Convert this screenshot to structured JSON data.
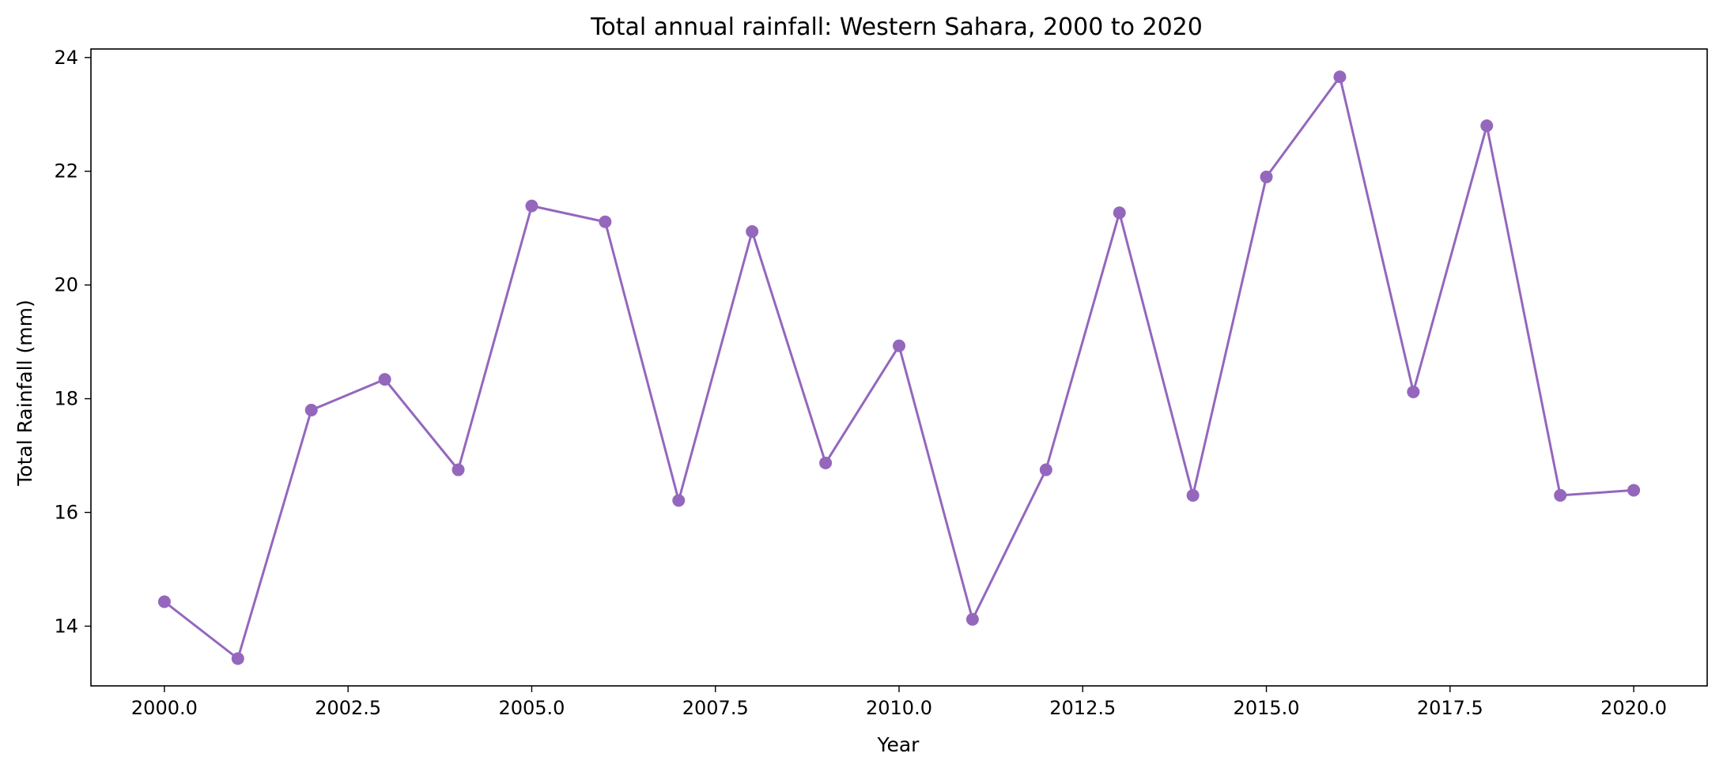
{
  "chart_data": {
    "type": "line",
    "title": "Total annual rainfall: Western Sahara, 2000 to 2020",
    "xlabel": "Year",
    "ylabel": "Total Rainfall (mm)",
    "xlim": [
      1999,
      2021
    ],
    "ylim": [
      12.95,
      24.15
    ],
    "x_ticks": [
      2000.0,
      2002.5,
      2005.0,
      2007.5,
      2010.0,
      2012.5,
      2015.0,
      2017.5,
      2020.0
    ],
    "x_tick_labels": [
      "2000.0",
      "2002.5",
      "2005.0",
      "2007.5",
      "2010.0",
      "2012.5",
      "2015.0",
      "2017.5",
      "2020.0"
    ],
    "y_ticks": [
      14,
      16,
      18,
      20,
      22,
      24
    ],
    "y_tick_labels": [
      "14",
      "16",
      "18",
      "20",
      "22",
      "24"
    ],
    "grid": false,
    "legend": "none",
    "color": "#9467bd",
    "series": [
      {
        "x": [
          2000,
          2001,
          2002,
          2003,
          2004,
          2005,
          2006,
          2007,
          2008,
          2009,
          2010,
          2011,
          2012,
          2013,
          2014,
          2015,
          2016,
          2017,
          2018,
          2019,
          2020
        ],
        "values": [
          14.43,
          13.43,
          17.8,
          18.34,
          16.75,
          21.39,
          21.11,
          16.21,
          20.94,
          16.87,
          18.93,
          14.12,
          16.75,
          21.27,
          16.3,
          21.9,
          23.66,
          18.12,
          22.8,
          16.3,
          16.39
        ]
      }
    ]
  }
}
